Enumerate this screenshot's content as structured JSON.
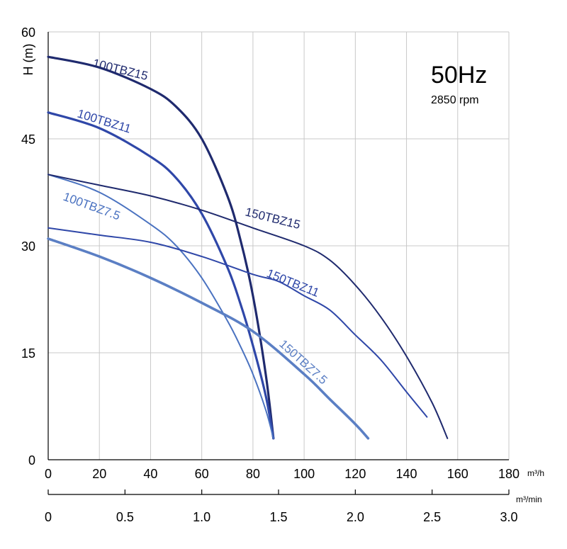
{
  "chart_data": {
    "type": "line",
    "title": "50Hz",
    "subtitle": "2850 rpm",
    "ylabel": "H (m)",
    "xlabel": "m³/h",
    "x2label": "m³/min",
    "xlim": [
      0,
      180
    ],
    "ylim": [
      0,
      60
    ],
    "x_ticks": [
      "0",
      "20",
      "40",
      "60",
      "80",
      "100",
      "120",
      "140",
      "160",
      "180"
    ],
    "x_tick_values": [
      0,
      20,
      40,
      60,
      80,
      100,
      120,
      140,
      160,
      180
    ],
    "x2_ticks": [
      "0",
      "0.5",
      "1.0",
      "1.5",
      "2.0",
      "2.5",
      "3.0"
    ],
    "x2_tick_values": [
      0,
      0.5,
      1.0,
      1.5,
      2.0,
      2.5,
      3.0
    ],
    "y_ticks": [
      "0",
      "15",
      "30",
      "45",
      "60"
    ],
    "y_tick_values": [
      0,
      15,
      30,
      45,
      60
    ],
    "grid": true,
    "series": [
      {
        "name": "100TBZ15",
        "color": "#1f2a6e",
        "x": [
          0,
          20,
          40,
          50,
          60,
          70,
          75,
          80,
          85,
          88
        ],
        "y": [
          56.5,
          55,
          52,
          49.5,
          45,
          37,
          31,
          23,
          12,
          3
        ]
      },
      {
        "name": "100TBZ11",
        "color": "#2f47a8",
        "x": [
          0,
          20,
          40,
          50,
          60,
          70,
          75,
          80,
          85,
          88
        ],
        "y": [
          48.7,
          46.5,
          42.5,
          39.5,
          34.5,
          27,
          22,
          16,
          9,
          3
        ]
      },
      {
        "name": "100TBZ7.5",
        "color": "#4a72c0",
        "x": [
          0,
          20,
          40,
          50,
          60,
          70,
          75,
          80,
          85,
          88
        ],
        "y": [
          40,
          37.5,
          33,
          30,
          25.5,
          19.5,
          16,
          12,
          7,
          3
        ]
      },
      {
        "name": "150TBZ15",
        "color": "#1f2a6e",
        "x": [
          0,
          20,
          40,
          60,
          80,
          100,
          110,
          120,
          130,
          140,
          150,
          156
        ],
        "y": [
          40,
          38.5,
          37,
          35,
          32.5,
          30,
          28,
          24.5,
          20,
          14.5,
          8,
          3
        ]
      },
      {
        "name": "150TBZ11",
        "color": "#2f47a8",
        "x": [
          0,
          20,
          40,
          60,
          80,
          90,
          100,
          110,
          120,
          130,
          140,
          148
        ],
        "y": [
          32.5,
          31.5,
          30.5,
          28.5,
          26,
          25,
          23,
          21,
          17.5,
          14,
          9.5,
          6
        ]
      },
      {
        "name": "150TBZ7.5",
        "color": "#5b7fc4",
        "x": [
          0,
          20,
          40,
          60,
          80,
          100,
          110,
          120,
          125
        ],
        "y": [
          31,
          28.5,
          25.5,
          22,
          18,
          12,
          8.5,
          5,
          3
        ]
      }
    ]
  }
}
